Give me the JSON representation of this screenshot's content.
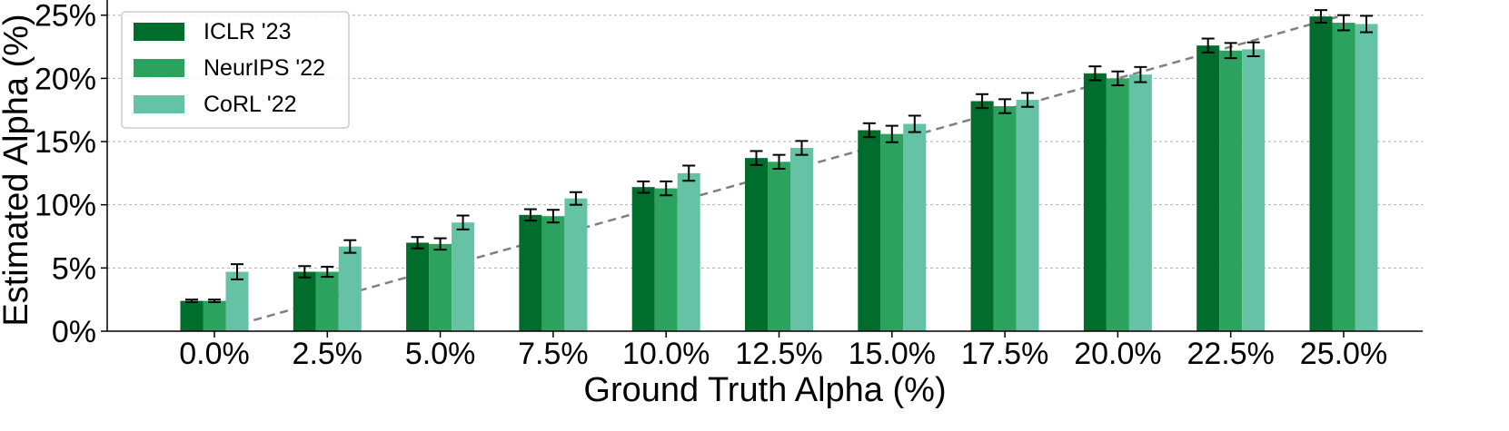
{
  "chart_data": {
    "type": "bar",
    "xlabel": "Ground Truth Alpha (%)",
    "ylabel": "Estimated Alpha (%)",
    "categories": [
      "0.0%",
      "2.5%",
      "5.0%",
      "7.5%",
      "10.0%",
      "12.5%",
      "15.0%",
      "17.5%",
      "20.0%",
      "22.5%",
      "25.0%"
    ],
    "ylim": [
      0,
      26.2
    ],
    "yticks": [
      0,
      5,
      10,
      15,
      20,
      25
    ],
    "ytick_labels": [
      "0%",
      "5%",
      "10%",
      "15%",
      "20%",
      "25%"
    ],
    "grid": "horizontal dashed",
    "legend_position": "top-left",
    "series": [
      {
        "name": "ICLR '23",
        "color": "#006d2c",
        "values": [
          2.4,
          4.7,
          7.0,
          9.2,
          11.4,
          13.7,
          15.9,
          18.2,
          20.4,
          22.6,
          24.9
        ],
        "errors": [
          0.1,
          0.45,
          0.45,
          0.45,
          0.45,
          0.55,
          0.55,
          0.55,
          0.55,
          0.55,
          0.5
        ]
      },
      {
        "name": "NeurIPS '22",
        "color": "#2ca25f",
        "values": [
          2.4,
          4.7,
          6.9,
          9.1,
          11.3,
          13.4,
          15.6,
          17.8,
          20.0,
          22.2,
          24.4
        ],
        "errors": [
          0.1,
          0.4,
          0.45,
          0.5,
          0.55,
          0.55,
          0.65,
          0.55,
          0.55,
          0.6,
          0.6
        ]
      },
      {
        "name": "CoRL '22",
        "color": "#66c2a4",
        "values": [
          4.7,
          6.7,
          8.6,
          10.5,
          12.5,
          14.5,
          16.4,
          18.3,
          20.3,
          22.3,
          24.3
        ],
        "errors": [
          0.6,
          0.5,
          0.55,
          0.5,
          0.6,
          0.55,
          0.65,
          0.55,
          0.6,
          0.55,
          0.65
        ]
      }
    ],
    "reference_line": {
      "style": "dashed",
      "color": "#808080",
      "from": [
        0.0,
        0.0
      ],
      "to": [
        25.0,
        25.0
      ]
    }
  }
}
